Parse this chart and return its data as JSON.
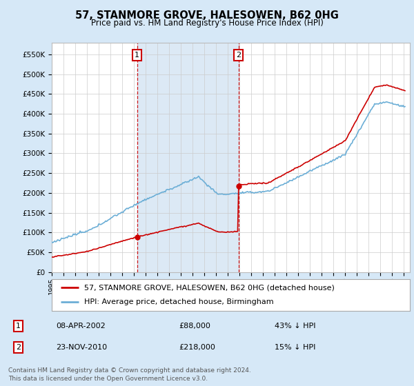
{
  "title": "57, STANMORE GROVE, HALESOWEN, B62 0HG",
  "subtitle": "Price paid vs. HM Land Registry's House Price Index (HPI)",
  "legend_line1": "57, STANMORE GROVE, HALESOWEN, B62 0HG (detached house)",
  "legend_line2": "HPI: Average price, detached house, Birmingham",
  "transaction1_date": "08-APR-2002",
  "transaction1_price": "£88,000",
  "transaction1_hpi": "43% ↓ HPI",
  "transaction1_year": 2002.27,
  "transaction1_value": 88000,
  "transaction2_date": "23-NOV-2010",
  "transaction2_price": "£218,000",
  "transaction2_hpi": "15% ↓ HPI",
  "transaction2_year": 2010.9,
  "transaction2_value": 218000,
  "vline_color": "#cc0000",
  "hpi_color": "#6BAED6",
  "price_color": "#cc0000",
  "shade_color": "#DCE9F5",
  "ylabel_ticks": [
    "£0",
    "£50K",
    "£100K",
    "£150K",
    "£200K",
    "£250K",
    "£300K",
    "£350K",
    "£400K",
    "£450K",
    "£500K",
    "£550K"
  ],
  "ytick_values": [
    0,
    50000,
    100000,
    150000,
    200000,
    250000,
    300000,
    350000,
    400000,
    450000,
    500000,
    550000
  ],
  "ylim": [
    0,
    580000
  ],
  "xlim_start": 1995.0,
  "xlim_end": 2025.5,
  "footer": "Contains HM Land Registry data © Crown copyright and database right 2024.\nThis data is licensed under the Open Government Licence v3.0.",
  "background_color": "#D6E8F7",
  "plot_bg_color": "#FFFFFF"
}
